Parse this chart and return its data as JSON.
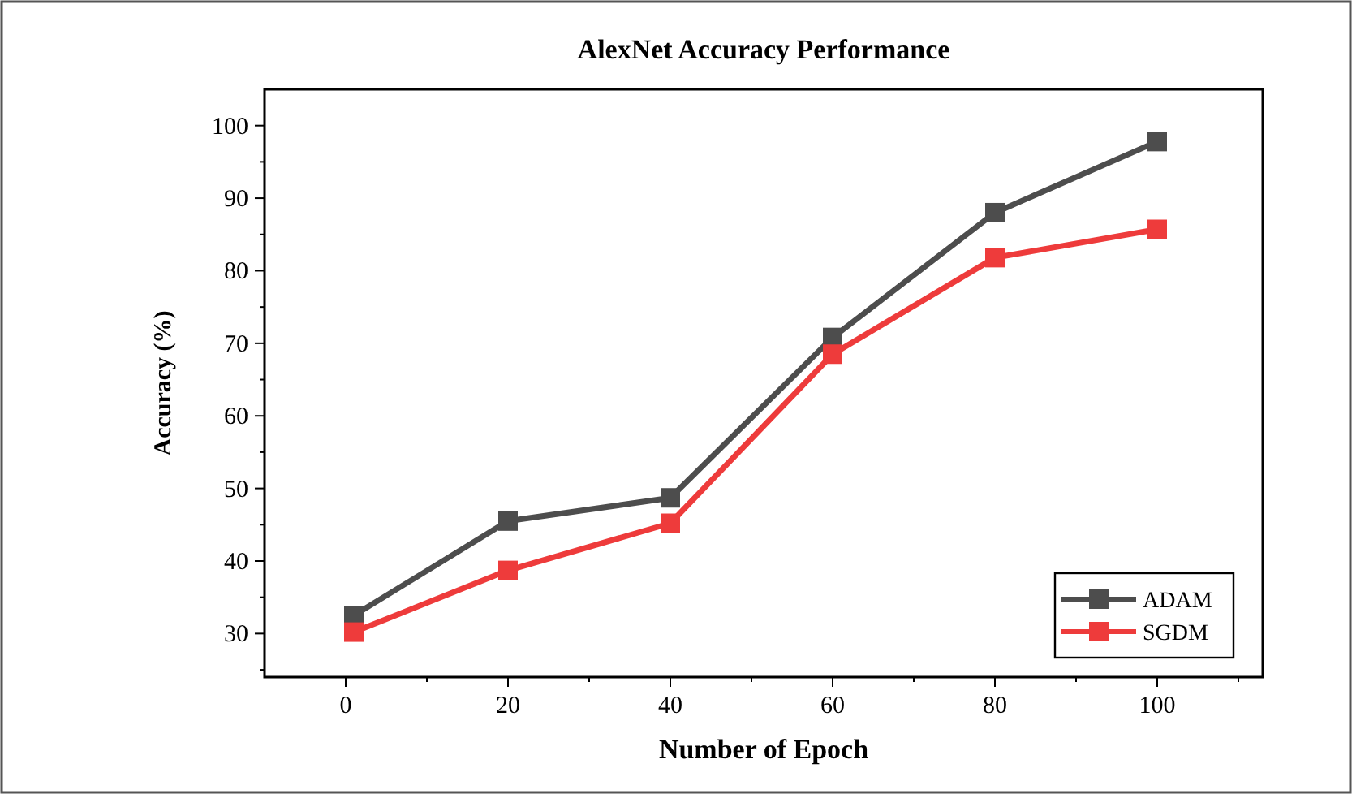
{
  "chart_data": {
    "type": "line",
    "title": "AlexNet Accuracy Performance",
    "xlabel": "Number of Epoch",
    "ylabel": "Accuracy (%)",
    "x": [
      1,
      20,
      40,
      60,
      80,
      100
    ],
    "series": [
      {
        "name": "ADAM",
        "color": "#4d4d4d",
        "values": [
          32.5,
          45.5,
          48.7,
          70.8,
          88,
          97.8
        ]
      },
      {
        "name": "SGDM",
        "color": "#ee3b3b",
        "values": [
          30.2,
          38.7,
          45.2,
          68.5,
          81.8,
          85.7
        ]
      }
    ],
    "xlim": [
      -10,
      113
    ],
    "xticks": [
      0,
      {
        "value": 10,
        "label": null
      },
      20,
      {
        "value": 30,
        "label": null
      },
      40,
      {
        "value": 50,
        "label": null
      },
      60,
      {
        "value": 70,
        "label": null
      },
      80,
      {
        "value": 90,
        "label": null
      },
      100,
      {
        "value": 110,
        "label": null
      }
    ],
    "ylim": [
      24,
      105
    ],
    "yticks": [
      {
        "value": 25,
        "label": null
      },
      30,
      {
        "value": 35,
        "label": null
      },
      40,
      {
        "value": 45,
        "label": null
      },
      50,
      {
        "value": 55,
        "label": null
      },
      60,
      {
        "value": 65,
        "label": null
      },
      70,
      {
        "value": 75,
        "label": null
      },
      80,
      {
        "value": 85,
        "label": null
      },
      90,
      {
        "value": 95,
        "label": null
      },
      100
    ],
    "grid": false,
    "legend": "bottom right",
    "marker": "square",
    "line_style": "solid"
  }
}
